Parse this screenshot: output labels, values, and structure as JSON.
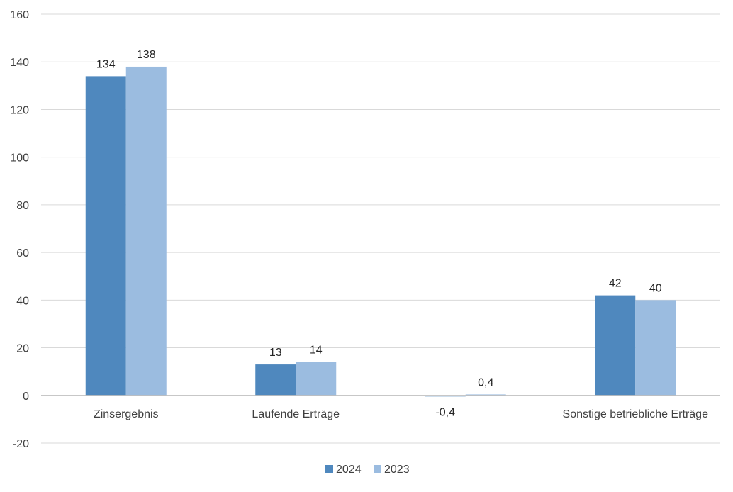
{
  "chart_data": {
    "type": "bar",
    "categories": [
      "Zinsergebnis",
      "Laufende Erträge",
      "",
      "Sonstige betriebliche Erträge"
    ],
    "series": [
      {
        "name": "2024",
        "values": [
          134,
          13,
          -0.4,
          42
        ],
        "labels": [
          "134",
          "13",
          "-0,4",
          "42"
        ],
        "color": "#4F88BE"
      },
      {
        "name": "2023",
        "values": [
          138,
          14,
          0.4,
          40
        ],
        "labels": [
          "138",
          "14",
          "0,4",
          "40"
        ],
        "color": "#9BBCE0"
      }
    ],
    "ylim": [
      -20,
      160
    ],
    "yticks": [
      -20,
      0,
      20,
      40,
      60,
      80,
      100,
      120,
      140,
      160
    ],
    "grid": true,
    "legend": "bottom-center",
    "colors": {
      "grid": "#D9D9D9",
      "axis": "#BFBFBF",
      "text": "#404040",
      "label": "#262626"
    }
  }
}
